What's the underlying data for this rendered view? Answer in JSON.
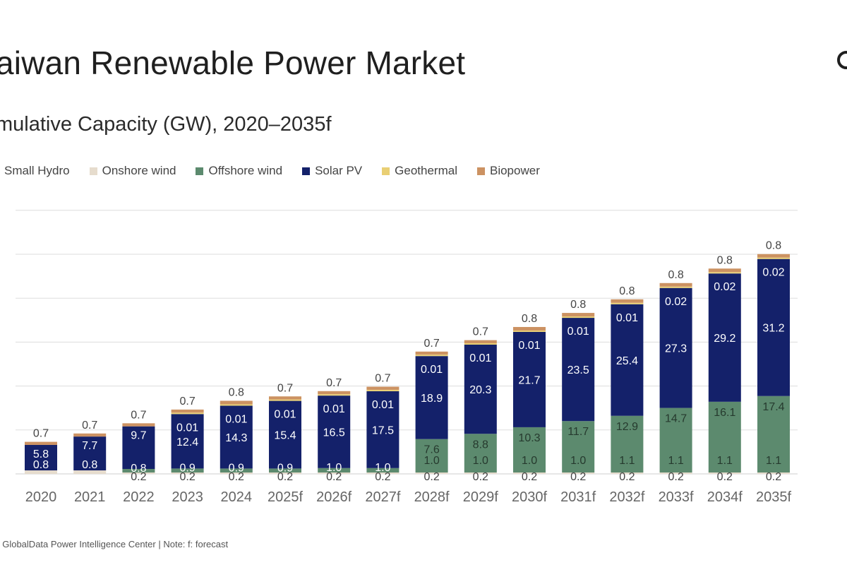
{
  "title": "aiwan Renewable Power Market",
  "subtitle": "mulative Capacity (GW), 2020–2035f",
  "source": ": GlobalData Power Intelligence Center | Note: f: forecast",
  "colors": {
    "small_hydro": "#c9d3ef",
    "onshore_wind": "#e6dccd",
    "offshore_wind": "#5c8a6e",
    "solar_pv": "#14216a",
    "geothermal": "#e9cf74",
    "biopower": "#cc9262",
    "gridline": "#dddddd"
  },
  "chart_data": {
    "type": "bar",
    "stacked": true,
    "categories": [
      "2020",
      "2021",
      "2022",
      "2023",
      "2024",
      "2025f",
      "2026f",
      "2027f",
      "2028f",
      "2029f",
      "2030f",
      "2031f",
      "2032f",
      "2033f",
      "2034f",
      "2035f"
    ],
    "series": [
      {
        "name": "Small Hydro",
        "values": [
          0,
          0,
          0,
          0,
          0,
          0,
          0,
          0,
          0,
          0,
          0,
          0,
          0,
          0,
          0,
          0
        ],
        "labels": [
          "",
          "",
          "",
          "",
          "",
          "",
          "",
          "",
          "",
          "",
          "",
          "",
          "",
          "",
          "",
          ""
        ]
      },
      {
        "name": "Onshore wind",
        "values": [
          0.8,
          0.8,
          0.2,
          0.2,
          0.2,
          0.2,
          0.2,
          0.2,
          0.2,
          0.2,
          0.2,
          0.2,
          0.2,
          0.2,
          0.2,
          0.2
        ],
        "labels": [
          "0.8",
          "0.8",
          "0.2",
          "0.2",
          "0.2",
          "0.2",
          "0.2",
          "0.2",
          "0.2",
          "0.2",
          "0.2",
          "0.2",
          "0.2",
          "0.2",
          "0.2",
          "0.2"
        ]
      },
      {
        "name": "Offshore wind",
        "values": [
          0,
          0,
          0.8,
          0.9,
          0.9,
          0.9,
          1.0,
          1.0,
          7.6,
          8.8,
          10.3,
          11.7,
          12.9,
          14.7,
          16.1,
          17.4
        ],
        "labels": [
          "",
          "",
          "0.8",
          "0.9",
          "0.9",
          "0.9",
          "1.0",
          "1.0",
          "7.6",
          "8.8",
          "10.3",
          "11.7",
          "12.9",
          "14.7",
          "16.1",
          "17.4"
        ]
      },
      {
        "name": "Solar PV",
        "values": [
          5.8,
          7.7,
          9.7,
          12.4,
          14.3,
          15.4,
          16.5,
          17.5,
          18.9,
          20.3,
          21.7,
          23.5,
          25.4,
          27.3,
          29.2,
          31.2
        ],
        "labels": [
          "5.8",
          "7.7",
          "9.7",
          "12.4",
          "14.3",
          "15.4",
          "16.5",
          "17.5",
          "18.9",
          "20.3",
          "21.7",
          "23.5",
          "25.4",
          "27.3",
          "29.2",
          "31.2"
        ]
      },
      {
        "name": "Geothermal",
        "values": [
          0,
          0,
          0,
          0.01,
          0.01,
          0.01,
          0.01,
          0.01,
          0.01,
          0.01,
          0.01,
          0.01,
          0.01,
          0.02,
          0.02,
          0.02
        ],
        "labels": [
          "",
          "",
          "",
          "0.01",
          "0.01",
          "0.01",
          "0.01",
          "0.01",
          "0.01",
          "0.01",
          "0.01",
          "0.01",
          "0.01",
          "0.02",
          "0.02",
          "0.02"
        ]
      },
      {
        "name": "Biopower",
        "values": [
          0.7,
          0.7,
          0.7,
          0.7,
          0.8,
          0.7,
          0.7,
          0.7,
          0.7,
          0.7,
          0.8,
          0.8,
          0.8,
          0.8,
          0.8,
          0.8
        ],
        "labels": [
          "0.7",
          "0.7",
          "0.7",
          "0.7",
          "0.8",
          "0.7",
          "0.7",
          "0.7",
          "0.7",
          "0.7",
          "0.8",
          "0.8",
          "0.8",
          "0.8",
          "0.8",
          "0.8"
        ]
      }
    ],
    "extra_labels": [
      {
        "category": "2028f",
        "text": "1.0"
      },
      {
        "category": "2029f",
        "text": "1.0"
      },
      {
        "category": "2030f",
        "text": "1.0"
      },
      {
        "category": "2031f",
        "text": "1.0"
      },
      {
        "category": "2032f",
        "text": "1.1"
      },
      {
        "category": "2033f",
        "text": "1.1"
      },
      {
        "category": "2034f",
        "text": "1.1"
      },
      {
        "category": "2035f",
        "text": "1.1"
      }
    ],
    "ylim": [
      0,
      60
    ],
    "grid": true,
    "legend_position": "top"
  }
}
